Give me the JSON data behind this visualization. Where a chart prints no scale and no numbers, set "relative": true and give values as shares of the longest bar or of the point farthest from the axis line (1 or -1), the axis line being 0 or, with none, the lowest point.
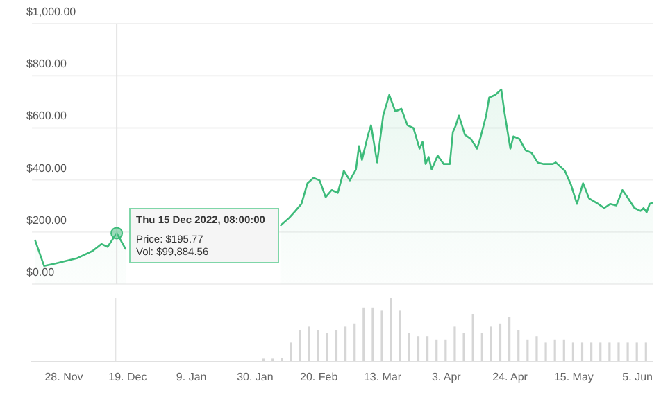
{
  "chart_data": [
    {
      "type": "area",
      "x": [
        "2022-11-18",
        "2022-11-21",
        "2022-11-25",
        "2022-12-02",
        "2022-12-07",
        "2022-12-10",
        "2022-12-12",
        "2022-12-15",
        "2022-12-18",
        "2023-01-10",
        "2023-02-07",
        "2023-02-10",
        "2023-02-12",
        "2023-02-14",
        "2023-02-16",
        "2023-02-18",
        "2023-02-20",
        "2023-02-22",
        "2023-02-24",
        "2023-02-26",
        "2023-02-28",
        "2023-03-02",
        "2023-03-04",
        "2023-03-05",
        "2023-03-06",
        "2023-03-08",
        "2023-03-09",
        "2023-03-11",
        "2023-03-13",
        "2023-03-15",
        "2023-03-17",
        "2023-03-19",
        "2023-03-21",
        "2023-03-23",
        "2023-03-25",
        "2023-03-26",
        "2023-03-27",
        "2023-03-28",
        "2023-03-29",
        "2023-03-31",
        "2023-04-02",
        "2023-04-04",
        "2023-04-05",
        "2023-04-06",
        "2023-04-07",
        "2023-04-09",
        "2023-04-11",
        "2023-04-13",
        "2023-04-14",
        "2023-04-16",
        "2023-04-17",
        "2023-04-19",
        "2023-04-21",
        "2023-04-22",
        "2023-04-24",
        "2023-04-25",
        "2023-04-27",
        "2023-04-29",
        "2023-05-01",
        "2023-05-03",
        "2023-05-05",
        "2023-05-08",
        "2023-05-09",
        "2023-05-12",
        "2023-05-14",
        "2023-05-16",
        "2023-05-18",
        "2023-05-20",
        "2023-05-23",
        "2023-05-25",
        "2023-05-27",
        "2023-05-29",
        "2023-05-31",
        "2023-06-01",
        "2023-06-04",
        "2023-06-06",
        "2023-06-07",
        "2023-06-08",
        "2023-06-09",
        "2023-06-10"
      ],
      "series": [
        {
          "color": "#3dbb7a",
          "values": [
            170,
            70,
            80,
            100,
            127,
            154,
            143,
            195.77,
            133,
            null,
            224,
            255,
            281,
            308,
            387,
            408,
            398,
            334,
            361,
            350,
            435,
            398,
            440,
            530,
            477,
            573,
            610,
            467,
            647,
            726,
            663,
            673,
            610,
            599,
            520,
            546,
            461,
            488,
            440,
            493,
            461,
            461,
            583,
            610,
            647,
            573,
            557,
            520,
            557,
            647,
            716,
            726,
            747,
            663,
            520,
            567,
            557,
            514,
            504,
            467,
            461,
            461,
            467,
            435,
            382,
            308,
            387,
            329,
            308,
            292,
            308,
            302,
            361,
            345,
            292,
            281,
            292,
            276,
            308,
            313
          ]
        }
      ],
      "xlim": [
        "2022-11-17",
        "2023-06-10"
      ],
      "ylim": [
        0,
        1000
      ],
      "yticks": [
        {
          "value": 0,
          "label": "$0.00"
        },
        {
          "value": 200,
          "label": "$200.00"
        },
        {
          "value": 400,
          "label": "$400.00"
        },
        {
          "value": 600,
          "label": "$600.00"
        },
        {
          "value": 800,
          "label": "$800.00"
        },
        {
          "value": 1000,
          "label": "$1,000.00"
        }
      ],
      "grid": "y",
      "tick_labels": "y",
      "marker": "none",
      "ref_lines": [
        {
          "axis": "x",
          "value": "2022-12-15",
          "color": "#e4e4e4"
        }
      ],
      "annotations": [
        {
          "text": "Thu 15 Dec 2022, 08:00:00",
          "x": "2022-12-15",
          "y": 195.77
        },
        "Price: $195.77",
        "Vol: $99,884.56"
      ]
    },
    {
      "type": "bar",
      "relative": true,
      "x": [
        "2023-02-02",
        "2023-02-05",
        "2023-02-08",
        "2023-02-11",
        "2023-02-14",
        "2023-02-17",
        "2023-02-20",
        "2023-02-23",
        "2023-02-26",
        "2023-03-01",
        "2023-03-04",
        "2023-03-07",
        "2023-03-10",
        "2023-03-13",
        "2023-03-16",
        "2023-03-19",
        "2023-03-22",
        "2023-03-25",
        "2023-03-28",
        "2023-03-31",
        "2023-04-03",
        "2023-04-06",
        "2023-04-09",
        "2023-04-12",
        "2023-04-15",
        "2023-04-18",
        "2023-04-21",
        "2023-04-24",
        "2023-04-27",
        "2023-04-30",
        "2023-05-03",
        "2023-05-06",
        "2023-05-09",
        "2023-05-12",
        "2023-05-15",
        "2023-05-18",
        "2023-05-21",
        "2023-05-24",
        "2023-05-27",
        "2023-05-30",
        "2023-06-02",
        "2023-06-05",
        "2023-06-08"
      ],
      "series": [
        {
          "color": "#d6d6d6",
          "values": [
            0.05,
            0.05,
            0.06,
            0.3,
            0.5,
            0.55,
            0.5,
            0.45,
            0.5,
            0.55,
            0.6,
            0.85,
            0.85,
            0.8,
            1,
            0.8,
            0.45,
            0.4,
            0.4,
            0.35,
            0.35,
            0.55,
            0.45,
            0.75,
            0.45,
            0.55,
            0.6,
            0.7,
            0.5,
            0.35,
            0.4,
            0.3,
            0.35,
            0.35,
            0.3,
            0.3,
            0.3,
            0.3,
            0.3,
            0.3,
            0.3,
            0.3,
            0.3
          ]
        }
      ],
      "xlim": [
        "2022-11-17",
        "2023-06-10"
      ],
      "xticks": [
        {
          "value": "2022-11-28",
          "label": "28. Nov"
        },
        {
          "value": "2022-12-19",
          "label": "19. Dec"
        },
        {
          "value": "2023-01-09",
          "label": "9. Jan"
        },
        {
          "value": "2023-01-30",
          "label": "30. Jan"
        },
        {
          "value": "2023-02-20",
          "label": "20. Feb"
        },
        {
          "value": "2023-03-13",
          "label": "13. Mar"
        },
        {
          "value": "2023-04-03",
          "label": "3. Apr"
        },
        {
          "value": "2023-04-24",
          "label": "24. Apr"
        },
        {
          "value": "2023-05-15",
          "label": "15. May"
        },
        {
          "value": "2023-06-05",
          "label": "5. Jun"
        }
      ],
      "ref_lines": [
        {
          "axis": "x",
          "value": "2022-12-15",
          "color": "#e4e4e4"
        }
      ]
    }
  ]
}
